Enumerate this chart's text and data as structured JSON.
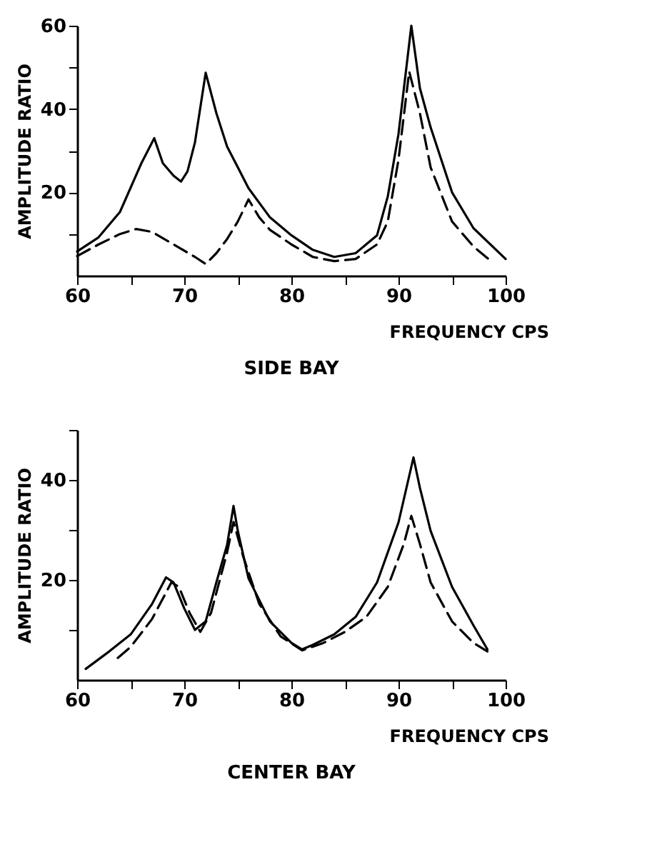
{
  "chart_data": [
    {
      "type": "line",
      "title": "SIDE BAY",
      "xlabel": "FREQUENCY  CPS",
      "ylabel": "AMPLITUDE RATIO",
      "xlim": [
        60,
        100
      ],
      "xticks": [
        60,
        {
          "value": 65,
          "label": null
        },
        70,
        {
          "value": 75,
          "label": null
        },
        80,
        {
          "value": 85,
          "label": null
        },
        90,
        {
          "value": 95,
          "label": null
        },
        100
      ],
      "ylim": [
        0,
        60
      ],
      "yticks": [
        {
          "value": 10,
          "label": null
        },
        20,
        {
          "value": 30,
          "label": null
        },
        40,
        {
          "value": 50,
          "label": null
        },
        60
      ],
      "grid": false,
      "series": [
        {
          "color": "#000000",
          "line_style": "solid",
          "x": [
            60,
            62,
            64,
            66,
            67.2,
            68,
            69,
            69.7,
            70.3,
            71,
            72,
            73,
            74,
            75,
            76,
            78,
            80,
            82,
            84,
            86,
            88,
            89,
            90,
            91.2,
            92,
            93,
            95,
            97,
            100
          ],
          "values": [
            5.8,
            9.2,
            15.3,
            27,
            33,
            27,
            24,
            22.6,
            25,
            32,
            48.7,
            39,
            31,
            26,
            21,
            14,
            9.7,
            6.2,
            4.5,
            5.4,
            9.7,
            19,
            34,
            60,
            45,
            35.6,
            20,
            11.4,
            4
          ]
        },
        {
          "color": "#000000",
          "line_style": "dashed",
          "x": [
            60,
            62,
            64,
            65.5,
            67,
            69,
            71,
            72,
            73,
            74,
            75,
            76,
            77,
            78,
            80,
            82,
            84,
            86,
            88,
            89,
            90,
            91,
            92,
            93,
            95,
            97,
            98.5
          ],
          "values": [
            4.7,
            7.5,
            10,
            11.2,
            10.5,
            7.5,
            4.5,
            2.8,
            5.4,
            8.8,
            13,
            18.3,
            14,
            11,
            7.5,
            4.5,
            3.5,
            4,
            7.5,
            13,
            27.8,
            49,
            39,
            26,
            13,
            7,
            3.8
          ]
        }
      ]
    },
    {
      "type": "line",
      "title": "CENTER BAY",
      "xlabel": "FREQUENCY  CPS",
      "ylabel": "AMPLITUDE RATIO",
      "xlim": [
        60,
        100
      ],
      "xticks": [
        60,
        {
          "value": 65,
          "label": null
        },
        70,
        {
          "value": 75,
          "label": null
        },
        80,
        {
          "value": 85,
          "label": null
        },
        90,
        {
          "value": 95,
          "label": null
        },
        100
      ],
      "ylim": [
        0,
        50
      ],
      "yticks": [
        {
          "value": 10,
          "label": null
        },
        20,
        {
          "value": 30,
          "label": null
        },
        40,
        {
          "value": 50,
          "label": null
        }
      ],
      "grid": false,
      "series": [
        {
          "color": "#000000",
          "line_style": "solid",
          "x": [
            60.8,
            63,
            65,
            67,
            68.3,
            69,
            70,
            71,
            72,
            73,
            74,
            74.6,
            75,
            76,
            78,
            80,
            81,
            82,
            84,
            86,
            88,
            90,
            91.4,
            92,
            93,
            95,
            97,
            98.3
          ],
          "values": [
            2.2,
            5.7,
            9.1,
            15.2,
            20.5,
            19.5,
            14.3,
            10,
            11.7,
            19.5,
            27,
            34.8,
            29.8,
            20.3,
            11.7,
            7.4,
            6.1,
            7,
            9.1,
            12.6,
            19.5,
            31.5,
            44.5,
            38.4,
            29.8,
            18.6,
            10.9,
            6.1
          ]
        },
        {
          "color": "#000000",
          "line_style": "dashed",
          "x": [
            63.8,
            65,
            67,
            68.8,
            69.5,
            70.5,
            71.5,
            72.5,
            74,
            74.6,
            75.5,
            77,
            79,
            81,
            83,
            85,
            87,
            89,
            90.5,
            91.2,
            92,
            93,
            95,
            97,
            98.3
          ],
          "values": [
            4.4,
            6.6,
            12.2,
            19.5,
            18.6,
            13.4,
            9.6,
            13.4,
            25.5,
            31.6,
            24.7,
            15.2,
            8.7,
            5.9,
            7.4,
            9.6,
            12.6,
            18.6,
            27.2,
            32.8,
            27.2,
            19.5,
            11.7,
            7.4,
            5.7
          ]
        }
      ]
    }
  ]
}
